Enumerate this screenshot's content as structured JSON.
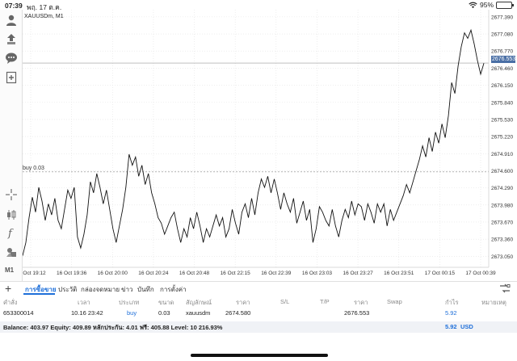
{
  "status": {
    "time": "07:39",
    "date": "พฤ. 17 ต.ค.",
    "battery": "95%"
  },
  "toolbar": {
    "items": [
      {
        "icon": "account-icon"
      },
      {
        "icon": "trade-icon"
      },
      {
        "icon": "chat-icon"
      },
      {
        "icon": "new-order-icon"
      },
      {
        "icon": "crosshair-icon"
      },
      {
        "icon": "candles-icon"
      },
      {
        "icon": "indicator-icon"
      },
      {
        "icon": "objects-icon"
      }
    ],
    "timeframe": "M1"
  },
  "chart": {
    "symbol": "XAUUSDm, M1",
    "buy_label": "buy 0.03",
    "current_price": "2676.553",
    "buy_level": 2674.58,
    "y_ticks": [
      "2677.390",
      "2677.080",
      "2676.770",
      "2676.460",
      "2676.150",
      "2675.840",
      "2675.530",
      "2675.220",
      "2674.910",
      "2674.600",
      "2674.290",
      "2673.980",
      "2673.670",
      "2673.360",
      "2673.050"
    ],
    "x_ticks": [
      "16 Oct 19:12",
      "16 Oct 19:36",
      "16 Oct 20:00",
      "16 Oct 20:24",
      "16 Oct 20:48",
      "16 Oct 22:15",
      "16 Oct 22:39",
      "16 Oct 23:03",
      "16 Oct 23:27",
      "16 Oct 23:51",
      "17 Oct 00:15",
      "17 Oct 00:39"
    ]
  },
  "chart_data": {
    "type": "line",
    "title": "XAUUSDm, M1",
    "ylim": [
      2672.85,
      2677.52
    ],
    "series": [
      {
        "values": [
          2673.06,
          2673.3,
          2673.75,
          2674.12,
          2673.85,
          2674.3,
          2674.05,
          2673.7,
          2674.0,
          2673.8,
          2674.1,
          2673.7,
          2673.55,
          2673.9,
          2674.25,
          2674.1,
          2674.3,
          2673.4,
          2673.2,
          2673.45,
          2673.8,
          2674.4,
          2674.2,
          2674.55,
          2674.3,
          2674.0,
          2674.25,
          2673.9,
          2673.55,
          2673.3,
          2673.6,
          2673.9,
          2674.3,
          2674.9,
          2674.7,
          2674.85,
          2674.5,
          2674.7,
          2674.35,
          2674.55,
          2674.2,
          2674.0,
          2673.75,
          2673.65,
          2673.45,
          2673.6,
          2673.75,
          2673.85,
          2673.55,
          2673.3,
          2673.55,
          2673.4,
          2673.75,
          2673.55,
          2673.85,
          2673.6,
          2673.3,
          2673.55,
          2673.4,
          2673.6,
          2673.8,
          2673.6,
          2673.75,
          2673.4,
          2673.55,
          2673.9,
          2673.65,
          2673.45,
          2673.85,
          2674.0,
          2673.75,
          2674.1,
          2673.8,
          2674.2,
          2674.45,
          2674.3,
          2674.5,
          2674.2,
          2674.45,
          2674.2,
          2673.9,
          2674.2,
          2674.0,
          2673.85,
          2674.1,
          2673.65,
          2673.85,
          2674.05,
          2673.7,
          2673.9,
          2673.3,
          2673.55,
          2673.95,
          2673.85,
          2673.7,
          2673.6,
          2673.9,
          2673.6,
          2673.4,
          2673.7,
          2673.9,
          2673.75,
          2674.05,
          2673.8,
          2674.0,
          2673.95,
          2673.7,
          2674.0,
          2673.85,
          2673.65,
          2674.0,
          2673.85,
          2674.0,
          2673.6,
          2673.9,
          2673.7,
          2673.85,
          2674.0,
          2674.15,
          2674.35,
          2674.2,
          2674.4,
          2674.6,
          2674.8,
          2675.05,
          2674.85,
          2675.2,
          2674.95,
          2675.3,
          2675.1,
          2675.45,
          2675.2,
          2675.6,
          2676.2,
          2676.0,
          2676.5,
          2676.85,
          2677.1,
          2677.0,
          2677.15,
          2676.9,
          2676.6,
          2676.35,
          2676.55
        ]
      }
    ]
  },
  "tabs": [
    {
      "label": "การซื้อขาย",
      "active": true
    },
    {
      "label": "ประวัติ"
    },
    {
      "label": "กล่องจดหมาย"
    },
    {
      "label": "ข่าว"
    },
    {
      "label": "บันทึก"
    },
    {
      "label": "การตั้งค่า"
    }
  ],
  "table": {
    "headers": [
      "คำสั่ง",
      "เวลา",
      "ประเภท",
      "ขนาด",
      "สัญลักษณ์",
      "ราคา",
      "S/L",
      "T/P",
      "ราคา",
      "Swap",
      "กำไร",
      "หมายเหตุ"
    ],
    "row": {
      "order": "653300014",
      "time": "10.16 23:42",
      "type": "buy",
      "size": "0.03",
      "symbol": "xauusdm",
      "open_price": "2674.580",
      "current_price": "2676.553",
      "profit": "5.92"
    }
  },
  "balance": {
    "text": "Balance: 403.97 Equity: 409.89 หลักประกัน: 4.01 ฟรี: 405.88 Level: 10 216.93%",
    "profit": "5.92",
    "currency": "USD"
  }
}
